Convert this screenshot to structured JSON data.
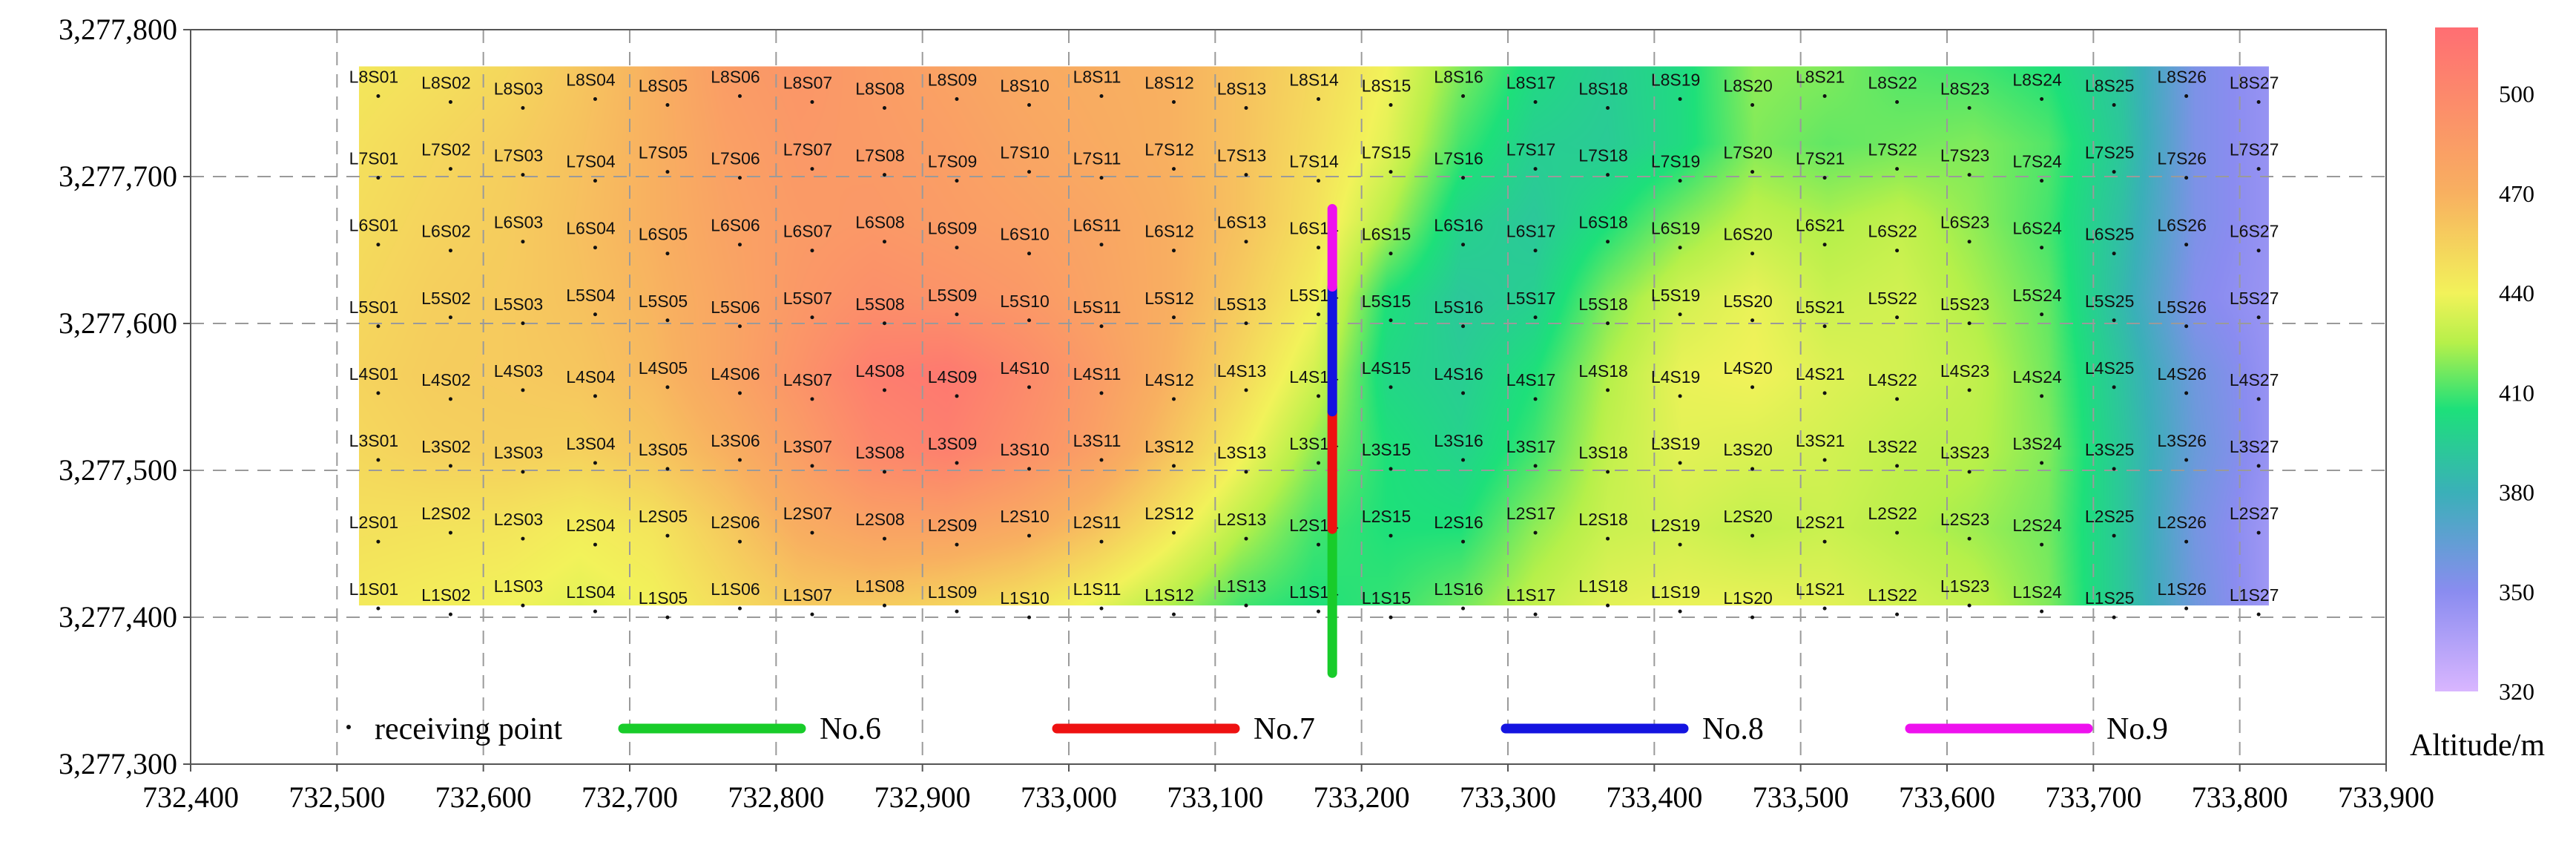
{
  "chart_data": {
    "type": "heatmap",
    "title": "",
    "xlabel": "",
    "ylabel": "",
    "xlim": [
      732400,
      733900
    ],
    "ylim": [
      3277300,
      3277800
    ],
    "x_ticks": [
      732400,
      732500,
      732600,
      732700,
      732800,
      732900,
      733000,
      733100,
      733200,
      733300,
      733400,
      733500,
      733600,
      733700,
      733800,
      733900
    ],
    "y_ticks": [
      3277300,
      3277400,
      3277500,
      3277600,
      3277700,
      3277800
    ],
    "x_tick_labels": [
      "732,400",
      "732,500",
      "732,600",
      "732,700",
      "732,800",
      "732,900",
      "733,000",
      "733,100",
      "733,200",
      "733,300",
      "733,400",
      "733,500",
      "733,600",
      "733,700",
      "733,800",
      "733,900"
    ],
    "y_tick_labels": [
      "3,277,300",
      "3,277,400",
      "3,277,500",
      "3,277,600",
      "3,277,700",
      "3,277,800"
    ],
    "grid": "dashed",
    "surveyed_area": {
      "x": [
        732515,
        733820
      ],
      "y": [
        3277408,
        3277775
      ]
    },
    "colorbar": {
      "title": "Altitude/m",
      "range": [
        320,
        520
      ],
      "ticks": [
        320,
        350,
        380,
        410,
        440,
        470,
        500
      ],
      "tick_labels": [
        "320",
        "350",
        "380",
        "410",
        "440",
        "470",
        "500"
      ],
      "stops": [
        {
          "value": 320,
          "color": "#d9b6ff"
        },
        {
          "value": 350,
          "color": "#8a8cf0"
        },
        {
          "value": 380,
          "color": "#3ab0b8"
        },
        {
          "value": 405,
          "color": "#1de07a"
        },
        {
          "value": 425,
          "color": "#b6f04a"
        },
        {
          "value": 440,
          "color": "#f2f25a"
        },
        {
          "value": 470,
          "color": "#f8b060"
        },
        {
          "value": 520,
          "color": "#ff6e73"
        }
      ]
    },
    "altitude_grid": {
      "lines": [
        "L8",
        "L7",
        "L6",
        "L5",
        "L4",
        "L3",
        "L2",
        "L1"
      ],
      "columns": 27,
      "values": [
        [
          445,
          448,
          452,
          460,
          470,
          485,
          490,
          485,
          480,
          475,
          472,
          470,
          462,
          452,
          440,
          418,
          402,
          395,
          402,
          420,
          418,
          412,
          410,
          405,
          390,
          355,
          345
        ],
        [
          448,
          452,
          456,
          462,
          470,
          482,
          488,
          486,
          483,
          478,
          474,
          470,
          462,
          450,
          436,
          410,
          396,
          394,
          402,
          418,
          414,
          416,
          418,
          412,
          392,
          355,
          345
        ],
        [
          450,
          454,
          457,
          463,
          470,
          480,
          486,
          488,
          485,
          482,
          478,
          472,
          462,
          448,
          425,
          398,
          392,
          404,
          418,
          428,
          424,
          428,
          420,
          410,
          388,
          355,
          345
        ],
        [
          452,
          456,
          458,
          462,
          468,
          478,
          488,
          495,
          492,
          488,
          480,
          472,
          458,
          442,
          405,
          392,
          396,
          418,
          432,
          438,
          430,
          432,
          424,
          414,
          385,
          352,
          344
        ],
        [
          454,
          457,
          458,
          460,
          466,
          478,
          492,
          508,
          512,
          500,
          486,
          470,
          452,
          432,
          400,
          395,
          405,
          425,
          438,
          440,
          435,
          432,
          428,
          416,
          390,
          360,
          345
        ],
        [
          452,
          455,
          456,
          455,
          460,
          470,
          484,
          500,
          506,
          495,
          482,
          462,
          442,
          420,
          405,
          398,
          410,
          428,
          436,
          434,
          432,
          428,
          426,
          418,
          392,
          362,
          345
        ],
        [
          448,
          447,
          446,
          442,
          446,
          458,
          472,
          480,
          480,
          474,
          462,
          445,
          426,
          410,
          405,
          405,
          420,
          430,
          432,
          428,
          430,
          426,
          422,
          416,
          392,
          358,
          342
        ],
        [
          444,
          442,
          440,
          436,
          440,
          450,
          458,
          458,
          454,
          448,
          438,
          425,
          410,
          405,
          408,
          416,
          428,
          436,
          438,
          438,
          436,
          432,
          428,
          418,
          392,
          360,
          342
        ]
      ]
    },
    "receiving_points": [
      [
        "L8S01",
        "L8S02",
        "L8S03",
        "L8S04",
        "L8S05",
        "L8S06",
        "L8S07",
        "L8S08",
        "L8S09",
        "L8S10",
        "L8S11",
        "L8S12",
        "L8S13",
        "L8S14",
        "L8S15",
        "L8S16",
        "L8S17",
        "L8S18",
        "L8S19",
        "L8S20",
        "L8S21",
        "L8S22",
        "L8S23",
        "L8S24",
        "L8S25",
        "L8S26",
        "L8S27"
      ],
      [
        "L7S01",
        "L7S02",
        "L7S03",
        "L7S04",
        "L7S05",
        "L7S06",
        "L7S07",
        "L7S08",
        "L7S09",
        "L7S10",
        "L7S11",
        "L7S12",
        "L7S13",
        "L7S14",
        "L7S15",
        "L7S16",
        "L7S17",
        "L7S18",
        "L7S19",
        "L7S20",
        "L7S21",
        "L7S22",
        "L7S23",
        "L7S24",
        "L7S25",
        "L7S26",
        "L7S27"
      ],
      [
        "L6S01",
        "L6S02",
        "L6S03",
        "L6S04",
        "L6S05",
        "L6S06",
        "L6S07",
        "L6S08",
        "L6S09",
        "L6S10",
        "L6S11",
        "L6S12",
        "L6S13",
        "L6S14",
        "L6S15",
        "L6S16",
        "L6S17",
        "L6S18",
        "L6S19",
        "L6S20",
        "L6S21",
        "L6S22",
        "L6S23",
        "L6S24",
        "L6S25",
        "L6S26",
        "L6S27"
      ],
      [
        "L5S01",
        "L5S02",
        "L5S03",
        "L5S04",
        "L5S05",
        "L5S06",
        "L5S07",
        "L5S08",
        "L5S09",
        "L5S10",
        "L5S11",
        "L5S12",
        "L5S13",
        "L5S14",
        "L5S15",
        "L5S16",
        "L5S17",
        "L5S18",
        "L5S19",
        "L5S20",
        "L5S21",
        "L5S22",
        "L5S23",
        "L5S24",
        "L5S25",
        "L5S26",
        "L5S27"
      ],
      [
        "L4S01",
        "L4S02",
        "L4S03",
        "L4S04",
        "L4S05",
        "L4S06",
        "L4S07",
        "L4S08",
        "L4S09",
        "L4S10",
        "L4S11",
        "L4S12",
        "L4S13",
        "L4S14",
        "L4S15",
        "L4S16",
        "L4S17",
        "L4S18",
        "L4S19",
        "L4S20",
        "L4S21",
        "L4S22",
        "L4S23",
        "L4S24",
        "L4S25",
        "L4S26",
        "L4S27"
      ],
      [
        "L3S01",
        "L3S02",
        "L3S03",
        "L3S04",
        "L3S05",
        "L3S06",
        "L3S07",
        "L3S08",
        "L3S09",
        "L3S10",
        "L3S11",
        "L3S12",
        "L3S13",
        "L3S14",
        "L3S15",
        "L3S16",
        "L3S17",
        "L3S18",
        "L3S19",
        "L3S20",
        "L3S21",
        "L3S22",
        "L3S23",
        "L3S24",
        "L3S25",
        "L3S26",
        "L3S27"
      ],
      [
        "L2S01",
        "L2S02",
        "L2S03",
        "L2S04",
        "L2S05",
        "L2S06",
        "L2S07",
        "L2S08",
        "L2S09",
        "L2S10",
        "L2S11",
        "L2S12",
        "L2S13",
        "L2S14",
        "L2S15",
        "L2S16",
        "L2S17",
        "L2S18",
        "L2S19",
        "L2S20",
        "L2S21",
        "L2S22",
        "L2S23",
        "L2S24",
        "L2S25",
        "L2S26",
        "L2S27"
      ],
      [
        "L1S01",
        "L1S02",
        "L1S03",
        "L1S04",
        "L1S05",
        "L1S06",
        "L1S07",
        "L1S08",
        "L1S09",
        "L1S10",
        "L1S11",
        "L1S12",
        "L1S13",
        "L1S14",
        "L1S15",
        "L1S16",
        "L1S17",
        "L1S18",
        "L1S19",
        "L1S20",
        "L1S21",
        "L1S22",
        "L1S23",
        "L1S24",
        "L1S25",
        "L1S26",
        "L1S27"
      ]
    ],
    "profile_lines": [
      {
        "name": "No.6",
        "color": "#18cc2a",
        "x": 733180,
        "y": [
          3277362,
          3277460
        ]
      },
      {
        "name": "No.7",
        "color": "#ee1111",
        "x": 733180,
        "y": [
          3277460,
          3277540
        ]
      },
      {
        "name": "No.8",
        "color": "#1414e0",
        "x": 733180,
        "y": [
          3277540,
          3277625
        ]
      },
      {
        "name": "No.9",
        "color": "#ee11ee",
        "x": 733180,
        "y": [
          3277625,
          3277678
        ]
      }
    ],
    "legend": {
      "placement": "bottom-inside",
      "receiving_point_label": "receiving point",
      "entries": [
        {
          "name": "No.6",
          "color": "#18cc2a"
        },
        {
          "name": "No.7",
          "color": "#ee1111"
        },
        {
          "name": "No.8",
          "color": "#1414e0"
        },
        {
          "name": "No.9",
          "color": "#ee11ee"
        }
      ]
    }
  }
}
